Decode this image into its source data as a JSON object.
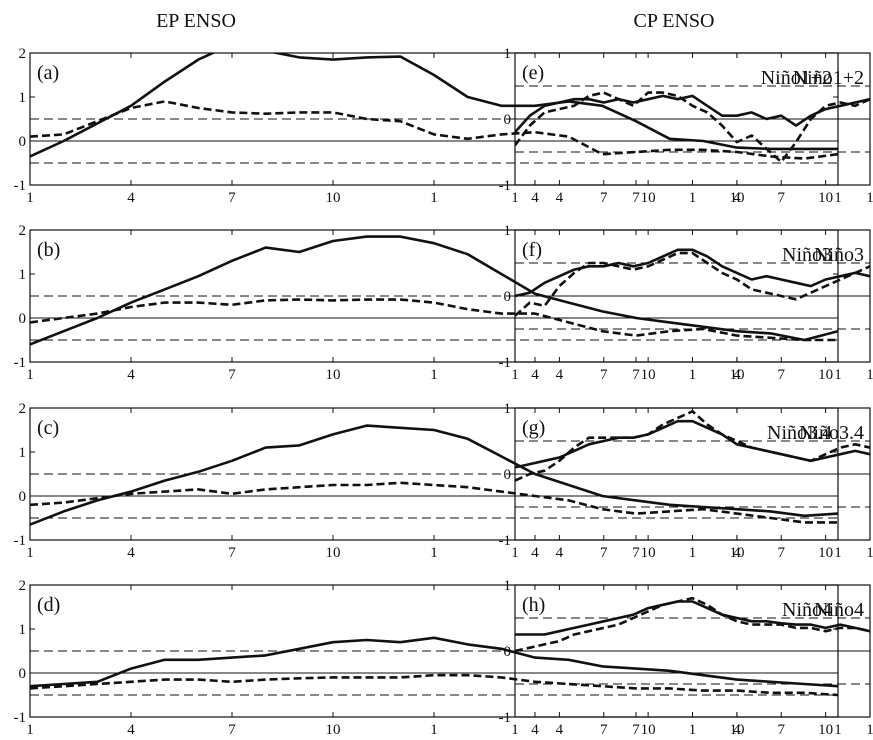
{
  "chart_data": {
    "type": "line",
    "columns": [
      {
        "title": "EP ENSO",
        "ylim": [
          -1,
          2
        ],
        "yticks": [
          -1,
          0,
          1,
          2
        ]
      },
      {
        "title": "CP ENSO",
        "ylim": [
          -1,
          1
        ],
        "yticks": [
          -1,
          0,
          1
        ]
      }
    ],
    "x": [
      1,
      2,
      3,
      4,
      5,
      6,
      7,
      8,
      9,
      10,
      11,
      12,
      13,
      14,
      15,
      16,
      17,
      18,
      19,
      20,
      21,
      22,
      23,
      24,
      25
    ],
    "xtick_labels": [
      "1",
      "4",
      "7",
      "10",
      "1",
      "4",
      "7",
      "10",
      "1"
    ],
    "hlines": [
      -0.5,
      0,
      0.5
    ],
    "grid": false,
    "legend": "none",
    "panels": [
      {
        "col": 0,
        "label": "(a)",
        "name": "Niño1+2",
        "series": [
          {
            "style": "solid",
            "values": [
              -0.35,
              0.0,
              0.4,
              0.8,
              1.35,
              1.85,
              2.2,
              2.05,
              1.9,
              1.85,
              1.9,
              1.92,
              1.5,
              1.0,
              0.8,
              0.8,
              0.9,
              0.8,
              0.45,
              0.05,
              0.0,
              -0.15,
              -0.18,
              -0.18,
              -0.18
            ]
          },
          {
            "style": "dashed",
            "values": [
              0.1,
              0.15,
              0.45,
              0.75,
              0.9,
              0.75,
              0.65,
              0.62,
              0.65,
              0.65,
              0.5,
              0.45,
              0.15,
              0.05,
              0.15,
              0.2,
              0.1,
              -0.3,
              -0.25,
              -0.2,
              -0.2,
              -0.25,
              -0.35,
              -0.4,
              -0.3
            ]
          }
        ]
      },
      {
        "col": 0,
        "label": "(b)",
        "name": "Niño3",
        "series": [
          {
            "style": "solid",
            "values": [
              -0.6,
              -0.3,
              0.0,
              0.35,
              0.65,
              0.95,
              1.3,
              1.6,
              1.5,
              1.75,
              1.85,
              1.85,
              1.7,
              1.45,
              1.0,
              0.55,
              0.35,
              0.15,
              0.0,
              -0.1,
              -0.2,
              -0.3,
              -0.35,
              -0.5,
              -0.3
            ]
          },
          {
            "style": "dashed",
            "values": [
              -0.1,
              0.0,
              0.1,
              0.25,
              0.35,
              0.35,
              0.3,
              0.4,
              0.42,
              0.4,
              0.42,
              0.42,
              0.35,
              0.2,
              0.1,
              0.1,
              -0.1,
              -0.3,
              -0.4,
              -0.3,
              -0.25,
              -0.4,
              -0.45,
              -0.5,
              -0.5
            ]
          }
        ]
      },
      {
        "col": 0,
        "label": "(c)",
        "name": "Niño3.4",
        "series": [
          {
            "style": "solid",
            "values": [
              -0.65,
              -0.35,
              -0.1,
              0.1,
              0.35,
              0.55,
              0.8,
              1.1,
              1.15,
              1.4,
              1.6,
              1.55,
              1.5,
              1.3,
              0.9,
              0.5,
              0.25,
              0.0,
              -0.1,
              -0.2,
              -0.25,
              -0.3,
              -0.35,
              -0.45,
              -0.4
            ]
          },
          {
            "style": "dashed",
            "values": [
              -0.2,
              -0.15,
              -0.05,
              0.05,
              0.1,
              0.15,
              0.05,
              0.15,
              0.2,
              0.25,
              0.25,
              0.3,
              0.25,
              0.2,
              0.1,
              0.0,
              -0.1,
              -0.3,
              -0.4,
              -0.35,
              -0.3,
              -0.4,
              -0.5,
              -0.6,
              -0.6
            ]
          }
        ]
      },
      {
        "col": 0,
        "label": "(d)",
        "name": "Niño4",
        "series": [
          {
            "style": "solid",
            "values": [
              -0.3,
              -0.25,
              -0.2,
              0.1,
              0.3,
              0.3,
              0.35,
              0.4,
              0.55,
              0.7,
              0.75,
              0.7,
              0.8,
              0.65,
              0.55,
              0.35,
              0.3,
              0.15,
              0.1,
              0.05,
              -0.05,
              -0.15,
              -0.2,
              -0.25,
              -0.3
            ]
          },
          {
            "style": "dashed",
            "values": [
              -0.35,
              -0.3,
              -0.25,
              -0.2,
              -0.15,
              -0.15,
              -0.2,
              -0.15,
              -0.12,
              -0.1,
              -0.1,
              -0.1,
              -0.05,
              -0.05,
              -0.1,
              -0.2,
              -0.25,
              -0.3,
              -0.35,
              -0.35,
              -0.4,
              -0.4,
              -0.45,
              -0.45,
              -0.5
            ]
          }
        ]
      },
      {
        "col": 1,
        "label": "(e)",
        "name": "Niño1+2",
        "series": [
          {
            "style": "solid",
            "values": [
              -0.2,
              0.05,
              0.2,
              0.25,
              0.3,
              0.3,
              0.25,
              0.3,
              0.25,
              0.3,
              0.35,
              0.3,
              0.35,
              0.2,
              0.05,
              0.05,
              0.1,
              0.0,
              0.05,
              -0.1,
              0.05,
              0.15,
              0.2,
              0.25,
              0.3
            ]
          },
          {
            "style": "dashed",
            "values": [
              -0.4,
              -0.1,
              0.1,
              0.15,
              0.2,
              0.35,
              0.4,
              0.3,
              0.2,
              0.4,
              0.4,
              0.35,
              0.2,
              0.1,
              -0.1,
              -0.35,
              -0.25,
              -0.45,
              -0.65,
              -0.35,
              0.0,
              0.2,
              0.25,
              0.2,
              0.3
            ]
          }
        ]
      },
      {
        "col": 1,
        "label": "(f)",
        "name": "Niño3",
        "series": [
          {
            "style": "solid",
            "values": [
              0.0,
              0.05,
              0.2,
              0.3,
              0.4,
              0.45,
              0.45,
              0.5,
              0.45,
              0.5,
              0.6,
              0.7,
              0.7,
              0.6,
              0.45,
              0.35,
              0.25,
              0.3,
              0.25,
              0.2,
              0.15,
              0.25,
              0.3,
              0.35,
              0.3
            ]
          },
          {
            "style": "dashed",
            "values": [
              -0.3,
              -0.1,
              -0.15,
              0.15,
              0.35,
              0.5,
              0.5,
              0.45,
              0.4,
              0.45,
              0.55,
              0.65,
              0.65,
              0.5,
              0.35,
              0.25,
              0.1,
              0.05,
              0.0,
              -0.05,
              0.05,
              0.15,
              0.25,
              0.35,
              0.45
            ]
          }
        ]
      },
      {
        "col": 1,
        "label": "(g)",
        "name": "Niño3.4",
        "series": [
          {
            "style": "solid",
            "values": [
              0.1,
              0.15,
              0.2,
              0.25,
              0.35,
              0.45,
              0.5,
              0.55,
              0.55,
              0.6,
              0.7,
              0.8,
              0.8,
              0.7,
              0.6,
              0.45,
              0.4,
              0.35,
              0.3,
              0.25,
              0.2,
              0.25,
              0.3,
              0.35,
              0.3
            ]
          },
          {
            "style": "dashed",
            "values": [
              -0.1,
              0.0,
              0.05,
              0.2,
              0.4,
              0.55,
              0.55,
              0.55,
              0.55,
              0.6,
              0.75,
              0.85,
              0.95,
              0.75,
              0.6,
              0.5,
              0.4,
              0.35,
              0.3,
              0.25,
              0.2,
              0.3,
              0.4,
              0.45,
              0.4
            ]
          }
        ]
      },
      {
        "col": 1,
        "label": "(h)",
        "name": "Niño4",
        "series": [
          {
            "style": "solid",
            "values": [
              0.25,
              0.25,
              0.25,
              0.3,
              0.35,
              0.4,
              0.45,
              0.5,
              0.55,
              0.65,
              0.7,
              0.75,
              0.75,
              0.65,
              0.55,
              0.5,
              0.45,
              0.45,
              0.42,
              0.4,
              0.4,
              0.35,
              0.4,
              0.35,
              0.3
            ]
          },
          {
            "style": "dashed",
            "values": [
              0.0,
              0.05,
              0.1,
              0.15,
              0.25,
              0.3,
              0.35,
              0.4,
              0.5,
              0.6,
              0.7,
              0.75,
              0.8,
              0.7,
              0.55,
              0.45,
              0.4,
              0.4,
              0.4,
              0.35,
              0.35,
              0.3,
              0.35,
              0.35,
              0.3
            ]
          }
        ]
      }
    ]
  }
}
